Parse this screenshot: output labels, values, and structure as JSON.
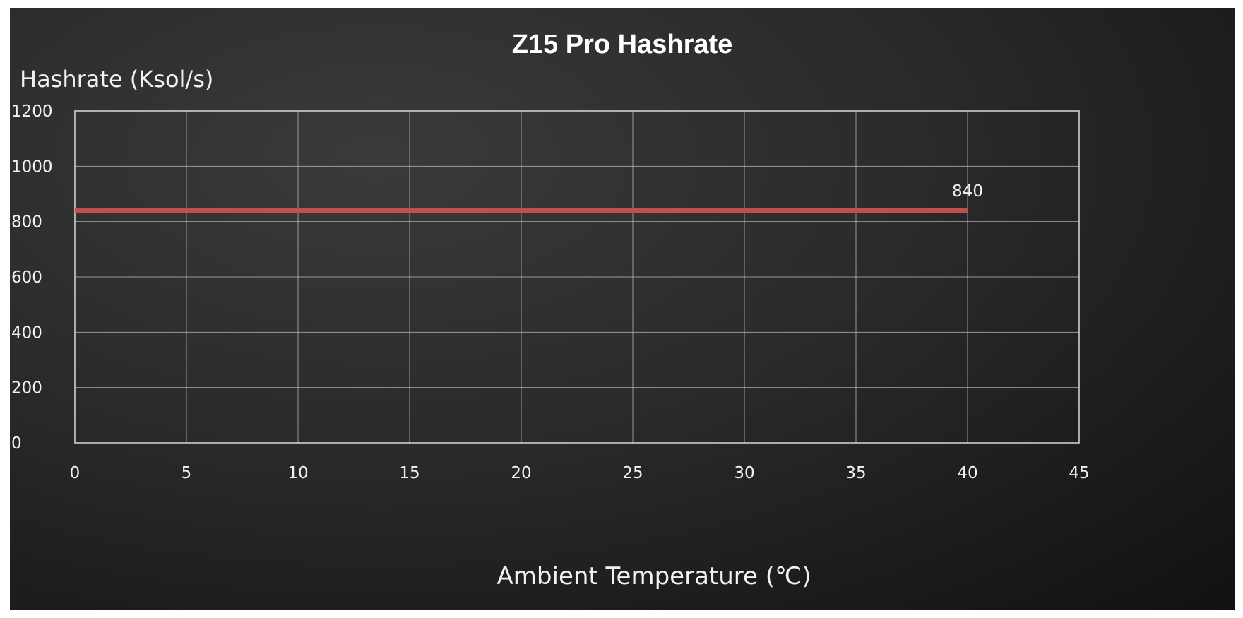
{
  "chart_data": {
    "type": "line",
    "title": "Z15 Pro Hashrate",
    "xlabel": "Ambient Temperature (℃)",
    "ylabel": "Hashrate (Ksol/s)",
    "xlim": [
      0,
      45
    ],
    "ylim": [
      0,
      1200
    ],
    "xticks": [
      0,
      5,
      10,
      15,
      20,
      25,
      30,
      35,
      40,
      45
    ],
    "yticks": [
      0,
      200,
      400,
      600,
      800,
      1000,
      1200
    ],
    "grid": true,
    "series": [
      {
        "x": [
          0,
          40
        ],
        "y": [
          840,
          840
        ],
        "color": "#c0504d",
        "data_label": {
          "x": 40,
          "y": 840,
          "text": "840"
        }
      }
    ]
  }
}
